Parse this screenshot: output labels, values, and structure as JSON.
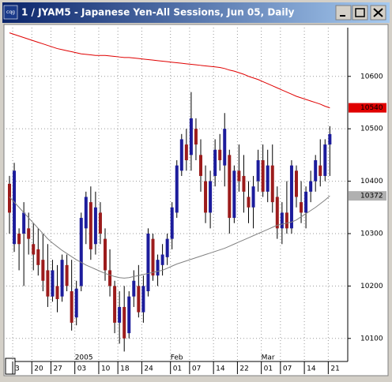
{
  "chart_data": {
    "type": "candlestick",
    "title": "1 / JYAM5 - Japanese Yen-All Sessions, Jun 05, Daily",
    "icon_label": "cqg",
    "categories": [
      null,
      "3",
      null,
      null,
      null,
      "20",
      null,
      null,
      null,
      "27",
      null,
      null,
      null,
      null,
      "03",
      null,
      null,
      null,
      null,
      "10",
      null,
      null,
      null,
      "18",
      null,
      null,
      null,
      null,
      "24",
      null,
      null,
      null,
      null,
      null,
      "01",
      null,
      null,
      null,
      "07",
      null,
      null,
      null,
      null,
      "14",
      null,
      null,
      null,
      null,
      "22",
      null,
      null,
      null,
      null,
      "01",
      null,
      null,
      null,
      "07",
      null,
      null,
      null,
      null,
      "14",
      null,
      null,
      null,
      null,
      "21"
    ],
    "period_labels": [
      null,
      null,
      null,
      null,
      null,
      null,
      null,
      null,
      null,
      null,
      null,
      null,
      null,
      null,
      "2005",
      null,
      null,
      null,
      null,
      null,
      null,
      null,
      null,
      null,
      null,
      null,
      null,
      null,
      null,
      null,
      null,
      null,
      null,
      null,
      "Feb",
      null,
      null,
      null,
      null,
      null,
      null,
      null,
      null,
      null,
      null,
      null,
      null,
      null,
      null,
      null,
      null,
      null,
      null,
      "Mar",
      null,
      null,
      null,
      null,
      null,
      null,
      null,
      null,
      null,
      null,
      null,
      null,
      null,
      null
    ],
    "open": [
      10395,
      10280,
      10300,
      10300,
      10310,
      10280,
      10270,
      10250,
      10230,
      10180,
      10200,
      10180,
      10240,
      10190,
      10140,
      10200,
      10310,
      10360,
      10280,
      10340,
      10290,
      10230,
      10200,
      10130,
      10160,
      10110,
      10180,
      10200,
      10150,
      10190,
      10290,
      10220,
      10240,
      10255,
      10290,
      10340,
      10420,
      10470,
      10450,
      10500,
      10450,
      10400,
      10340,
      10410,
      10460,
      10430,
      10450,
      10330,
      10420,
      10410,
      10370,
      10350,
      10400,
      10440,
      10380,
      10430,
      10370,
      10310,
      10340,
      10310,
      10420,
      10360,
      10340,
      10380,
      10400,
      10430,
      10410,
      10470
    ],
    "high": [
      10410,
      10435,
      10310,
      10360,
      10340,
      10320,
      10310,
      10300,
      10280,
      10250,
      10240,
      10260,
      10260,
      10250,
      10210,
      10340,
      10380,
      10390,
      10380,
      10360,
      10310,
      10270,
      10210,
      10190,
      10200,
      10190,
      10230,
      10240,
      10220,
      10310,
      10300,
      10260,
      10280,
      10300,
      10360,
      10440,
      10490,
      10500,
      10570,
      10520,
      10480,
      10430,
      10420,
      10480,
      10490,
      10530,
      10460,
      10430,
      10470,
      10450,
      10400,
      10410,
      10460,
      10470,
      10460,
      10470,
      10390,
      10360,
      10400,
      10440,
      10430,
      10400,
      10390,
      10420,
      10450,
      10480,
      10480,
      10505
    ],
    "low": [
      10300,
      10265,
      10230,
      10200,
      10260,
      10230,
      10220,
      10190,
      10160,
      10170,
      10150,
      10170,
      10190,
      10115,
      10125,
      10190,
      10280,
      10250,
      10260,
      10280,
      10210,
      10180,
      10110,
      10090,
      10075,
      10100,
      10160,
      10140,
      10130,
      10180,
      10210,
      10200,
      10220,
      10240,
      10270,
      10330,
      10410,
      10420,
      10420,
      10440,
      10380,
      10320,
      10310,
      10390,
      10420,
      10390,
      10300,
      10320,
      10380,
      10340,
      10320,
      10310,
      10380,
      10370,
      10360,
      10340,
      10290,
      10280,
      10300,
      10300,
      10350,
      10320,
      10310,
      10360,
      10380,
      10390,
      10400,
      10410
    ],
    "close": [
      10340,
      10420,
      10280,
      10340,
      10290,
      10260,
      10240,
      10210,
      10180,
      10230,
      10175,
      10250,
      10200,
      10130,
      10195,
      10330,
      10370,
      10270,
      10350,
      10300,
      10230,
      10200,
      10130,
      10160,
      10100,
      10180,
      10210,
      10150,
      10200,
      10300,
      10220,
      10250,
      10260,
      10290,
      10350,
      10430,
      10480,
      10440,
      10520,
      10470,
      10410,
      10340,
      10400,
      10460,
      10440,
      10500,
      10330,
      10420,
      10400,
      10380,
      10350,
      10390,
      10440,
      10380,
      10430,
      10360,
      10310,
      10340,
      10310,
      10430,
      10370,
      10340,
      10380,
      10400,
      10440,
      10410,
      10470,
      10490
    ],
    "up_color": "#1c1c9c",
    "down_color": "#9c1c1c",
    "moving_averages": [
      {
        "color": "#e00000",
        "label_color": "#e00000",
        "values": [
          10683,
          10680,
          10677,
          10674,
          10671,
          10668,
          10665,
          10662,
          10659,
          10656,
          10653,
          10651,
          10649,
          10647,
          10645,
          10643,
          10642,
          10641,
          10640,
          10640,
          10640,
          10639,
          10638,
          10637,
          10636,
          10636,
          10635,
          10634,
          10633,
          10632,
          10631,
          10630,
          10629,
          10628,
          10627,
          10626,
          10625,
          10624,
          10623,
          10622,
          10621,
          10620,
          10619,
          10618,
          10617,
          10615,
          10612,
          10610,
          10607,
          10604,
          10600,
          10597,
          10594,
          10590,
          10586,
          10582,
          10578,
          10574,
          10570,
          10566,
          10562,
          10559,
          10556,
          10553,
          10550,
          10547,
          10543,
          10540
        ]
      },
      {
        "color": "#808080",
        "label_color": "#b0b0b0",
        "values": [
          10370,
          10360,
          10350,
          10340,
          10330,
          10320,
          10310,
          10300,
          10290,
          10282,
          10275,
          10268,
          10262,
          10256,
          10250,
          10245,
          10240,
          10236,
          10232,
          10228,
          10224,
          10221,
          10218,
          10216,
          10215,
          10216,
          10218,
          10220,
          10222,
          10224,
          10226,
          10228,
          10230,
          10234,
          10238,
          10242,
          10245,
          10248,
          10251,
          10254,
          10257,
          10260,
          10263,
          10266,
          10269,
          10272,
          10276,
          10280,
          10284,
          10288,
          10292,
          10296,
          10300,
          10304,
          10308,
          10312,
          10316,
          10318,
          10320,
          10322,
          10326,
          10332,
          10338,
          10344,
          10350,
          10357,
          10364,
          10372
        ]
      }
    ],
    "ylim": [
      10056,
      10693
    ],
    "yticks": [
      10100,
      10200,
      10300,
      10400,
      10500,
      10600
    ],
    "grid": true
  }
}
